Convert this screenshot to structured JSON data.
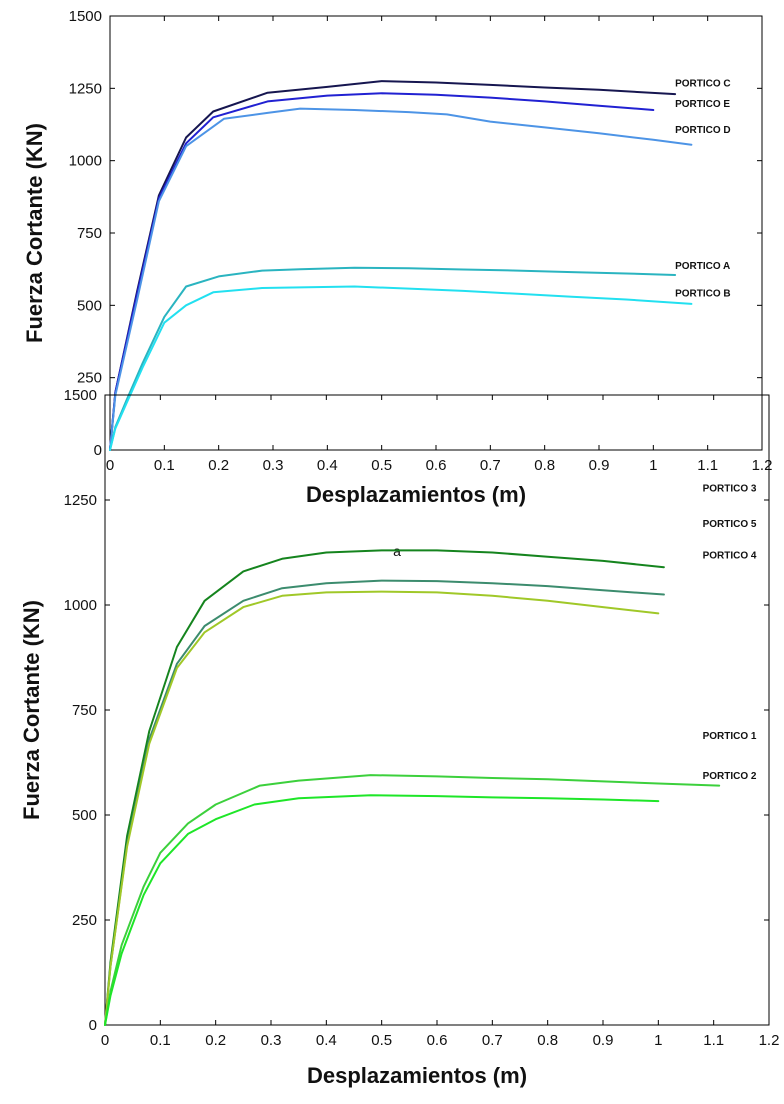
{
  "chart_data": [
    {
      "type": "line",
      "xlabel": "Desplazamientos (m)",
      "ylabel": "Fuerza Cortante (KN)",
      "xlim": [
        0,
        1.2
      ],
      "ylim": [
        0,
        1500
      ],
      "xticks": [
        "0",
        "0.1",
        "0.2",
        "0.3",
        "0.4",
        "0.5",
        "0.6",
        "0.7",
        "0.8",
        "0.9",
        "1",
        "1.1",
        "1.2"
      ],
      "yticks": [
        "0",
        "250",
        "500",
        "750",
        "1000",
        "1250",
        "1500"
      ],
      "grid": false,
      "caption": "a",
      "series": [
        {
          "name": "PORTICO C",
          "color": "#161650",
          "x": [
            0,
            0.01,
            0.05,
            0.09,
            0.14,
            0.19,
            0.29,
            0.4,
            0.5,
            0.6,
            0.7,
            0.8,
            0.9,
            1.04
          ],
          "y": [
            0,
            200,
            550,
            880,
            1080,
            1170,
            1235,
            1255,
            1275,
            1270,
            1262,
            1253,
            1245,
            1230
          ],
          "label_value": [
            1.04,
            1270
          ]
        },
        {
          "name": "PORTICO E",
          "color": "#2121d2",
          "x": [
            0,
            0.01,
            0.05,
            0.09,
            0.14,
            0.19,
            0.29,
            0.4,
            0.5,
            0.6,
            0.7,
            0.8,
            0.9,
            1.0
          ],
          "y": [
            0,
            200,
            540,
            870,
            1060,
            1150,
            1205,
            1225,
            1233,
            1228,
            1218,
            1205,
            1190,
            1175
          ],
          "label_value": [
            1.04,
            1200
          ]
        },
        {
          "name": "PORTICO D",
          "color": "#4d94e6",
          "x": [
            0,
            0.01,
            0.05,
            0.09,
            0.14,
            0.21,
            0.29,
            0.35,
            0.45,
            0.55,
            0.62,
            0.7,
            0.8,
            0.9,
            1.0,
            1.07
          ],
          "y": [
            0,
            190,
            520,
            860,
            1050,
            1145,
            1165,
            1180,
            1175,
            1168,
            1160,
            1135,
            1115,
            1095,
            1072,
            1055
          ],
          "label_value": [
            1.04,
            1110
          ]
        },
        {
          "name": "PORTICO A",
          "color": "#2ab4c0",
          "x": [
            0,
            0.01,
            0.03,
            0.06,
            0.1,
            0.14,
            0.2,
            0.28,
            0.35,
            0.45,
            0.55,
            0.65,
            0.75,
            0.85,
            0.95,
            1.04
          ],
          "y": [
            0,
            80,
            170,
            300,
            460,
            565,
            600,
            620,
            625,
            630,
            628,
            624,
            620,
            615,
            610,
            605
          ],
          "label_value": [
            1.04,
            640
          ]
        },
        {
          "name": "PORTICO B",
          "color": "#22e0f0",
          "x": [
            0,
            0.01,
            0.03,
            0.06,
            0.1,
            0.14,
            0.19,
            0.28,
            0.35,
            0.45,
            0.55,
            0.65,
            0.75,
            0.85,
            0.95,
            1.07
          ],
          "y": [
            0,
            75,
            160,
            285,
            440,
            500,
            545,
            560,
            562,
            565,
            558,
            550,
            540,
            530,
            520,
            505
          ],
          "label_value": [
            1.04,
            545
          ]
        }
      ]
    },
    {
      "type": "line",
      "xlabel": "Desplazamientos (m)",
      "ylabel": "Fuerza Cortante (KN)",
      "xlim": [
        0,
        1.2
      ],
      "ylim": [
        0,
        1500
      ],
      "xticks": [
        "0",
        "0.1",
        "0.2",
        "0.3",
        "0.4",
        "0.5",
        "0.6",
        "0.7",
        "0.8",
        "0.9",
        "1",
        "1.1",
        "1.2"
      ],
      "yticks": [
        "0",
        "250",
        "500",
        "750",
        "1000",
        "1250",
        "1500"
      ],
      "grid": false,
      "series": [
        {
          "name": "PORTICO 3",
          "color": "#15841e",
          "x": [
            0,
            0.01,
            0.04,
            0.08,
            0.13,
            0.18,
            0.25,
            0.32,
            0.4,
            0.5,
            0.6,
            0.7,
            0.8,
            0.9,
            1.01
          ],
          "y": [
            0,
            150,
            450,
            700,
            900,
            1010,
            1080,
            1110,
            1125,
            1130,
            1130,
            1125,
            1115,
            1105,
            1090
          ],
          "label_value": [
            1.08,
            1280
          ]
        },
        {
          "name": "PORTICO 5",
          "color": "#3c8c6e",
          "x": [
            0,
            0.01,
            0.04,
            0.08,
            0.13,
            0.18,
            0.25,
            0.32,
            0.4,
            0.5,
            0.6,
            0.7,
            0.8,
            0.9,
            1.01
          ],
          "y": [
            0,
            140,
            430,
            680,
            860,
            950,
            1010,
            1040,
            1052,
            1058,
            1057,
            1052,
            1045,
            1035,
            1025
          ],
          "label_value": [
            1.08,
            1195
          ]
        },
        {
          "name": "PORTICO 4",
          "color": "#a0c828",
          "x": [
            0,
            0.01,
            0.04,
            0.08,
            0.13,
            0.18,
            0.25,
            0.32,
            0.4,
            0.5,
            0.6,
            0.7,
            0.8,
            0.9,
            1.0
          ],
          "y": [
            0,
            140,
            425,
            670,
            850,
            935,
            995,
            1022,
            1030,
            1032,
            1030,
            1022,
            1010,
            995,
            980
          ],
          "label_value": [
            1.08,
            1120
          ]
        },
        {
          "name": "PORTICO 1",
          "color": "#3cd03c",
          "x": [
            0,
            0.01,
            0.03,
            0.07,
            0.1,
            0.15,
            0.2,
            0.28,
            0.35,
            0.48,
            0.6,
            0.7,
            0.8,
            0.9,
            1.0,
            1.11
          ],
          "y": [
            0,
            80,
            190,
            330,
            410,
            480,
            525,
            570,
            582,
            595,
            592,
            588,
            585,
            580,
            575,
            570
          ],
          "label_value": [
            1.08,
            690
          ]
        },
        {
          "name": "PORTICO 2",
          "color": "#1ee628",
          "x": [
            0,
            0.01,
            0.03,
            0.07,
            0.1,
            0.15,
            0.2,
            0.27,
            0.35,
            0.48,
            0.6,
            0.7,
            0.8,
            0.9,
            1.0
          ],
          "y": [
            0,
            70,
            170,
            310,
            385,
            455,
            490,
            525,
            540,
            547,
            545,
            542,
            540,
            537,
            533
          ],
          "label_value": [
            1.08,
            595
          ]
        }
      ]
    }
  ]
}
